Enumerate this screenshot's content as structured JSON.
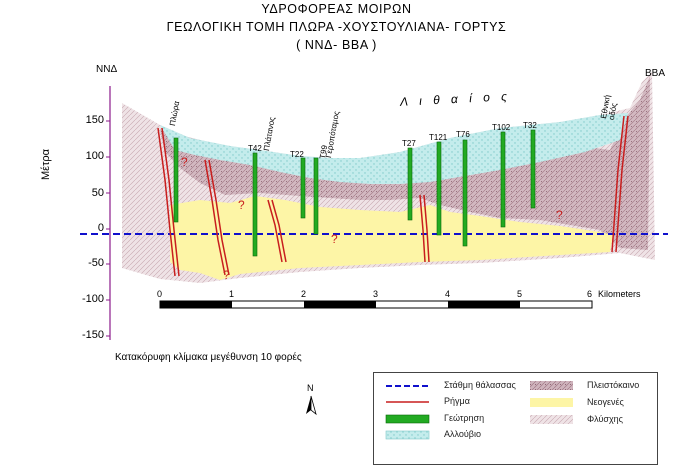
{
  "title": {
    "line1": "ΥΔΡΟΦΟΡΕΑΣ ΜΟΙΡΩΝ",
    "line2": "ΓΕΩΛΟΓΙΚΗ ΤΟΜΗ ΠΛΩΡΑ -ΧΟΥΣΤΟΥΛΙΑΝΑ- ΓΟΡΤΥΣ",
    "line3": "( ΝΝΔ- ΒΒΑ )"
  },
  "orientation": {
    "left": "ΝΝΔ",
    "right": "ΒΒΑ"
  },
  "y_axis": {
    "label": "Μέτρα",
    "ticks": [
      "150",
      "100",
      "50",
      "0",
      "-50",
      "-100",
      "-150"
    ],
    "range": [
      -150,
      150
    ]
  },
  "x_scale": {
    "ticks": [
      "0",
      "1",
      "2",
      "3",
      "4",
      "5",
      "6"
    ],
    "unit": "Kilometers"
  },
  "region_label": "Λ ι θ α ί ο ς",
  "place_labels": [
    "Πλώρα",
    "Πλάτανος",
    "Γεροπόταμος",
    "Εθνική οδός"
  ],
  "boreholes": [
    "T42",
    "T22",
    "T99",
    "T27",
    "T121",
    "T76",
    "T102",
    "T32"
  ],
  "question_mark": "?",
  "vertical_exaggeration": "Κατακόρυφη κλίμακα μεγέθυνση 10 φορές",
  "north_label": "N",
  "legend": {
    "sea_level": "Στάθμη θάλασσας",
    "fault": "Ρήγμα",
    "borehole": "Γεώτρηση",
    "alluvium": "Αλλούβιο",
    "pleistocene": "Πλειστόκαινο",
    "neogene": "Νεογενές",
    "flysch": "Φλύσχης"
  },
  "colors": {
    "alluvium": "#c6ecec",
    "pleistocene": "#c9a9b4",
    "neogene": "#fdf5a6",
    "flysch": "#ecdfe2",
    "borehole": "#22aa22",
    "fault": "#cc2222",
    "sea_level": "#0000cc",
    "axis": "#8b1a8b"
  }
}
